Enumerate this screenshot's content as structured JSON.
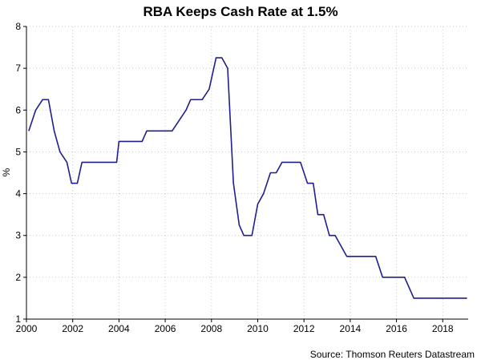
{
  "chart_data": {
    "type": "line",
    "title": "RBA Keeps Cash Rate at 1.5%",
    "ylabel": "%",
    "xlabel": "",
    "source": "Source: Thomson Reuters Datastream",
    "xlim": [
      2000,
      2019.1
    ],
    "ylim": [
      1,
      8
    ],
    "x_ticks": [
      2000,
      2002,
      2004,
      2006,
      2008,
      2010,
      2012,
      2014,
      2016,
      2018
    ],
    "y_ticks": [
      1,
      2,
      3,
      4,
      5,
      6,
      7,
      8
    ],
    "grid": true,
    "colors": {
      "line": "#1f1f8f"
    },
    "series": [
      {
        "points": [
          [
            2000.1,
            5.5
          ],
          [
            2000.4,
            6.0
          ],
          [
            2000.7,
            6.25
          ],
          [
            2000.95,
            6.25
          ],
          [
            2001.2,
            5.5
          ],
          [
            2001.45,
            5.0
          ],
          [
            2001.75,
            4.75
          ],
          [
            2001.95,
            4.25
          ],
          [
            2002.2,
            4.25
          ],
          [
            2002.4,
            4.75
          ],
          [
            2003.7,
            4.75
          ],
          [
            2003.9,
            4.75
          ],
          [
            2004.0,
            5.25
          ],
          [
            2005.0,
            5.25
          ],
          [
            2005.2,
            5.5
          ],
          [
            2006.3,
            5.5
          ],
          [
            2006.6,
            5.75
          ],
          [
            2006.9,
            6.0
          ],
          [
            2007.1,
            6.25
          ],
          [
            2007.6,
            6.25
          ],
          [
            2007.9,
            6.5
          ],
          [
            2008.0,
            6.75
          ],
          [
            2008.2,
            7.25
          ],
          [
            2008.45,
            7.25
          ],
          [
            2008.7,
            7.0
          ],
          [
            2008.95,
            4.25
          ],
          [
            2009.2,
            3.25
          ],
          [
            2009.4,
            3.0
          ],
          [
            2009.75,
            3.0
          ],
          [
            2010.0,
            3.75
          ],
          [
            2010.25,
            4.0
          ],
          [
            2010.55,
            4.5
          ],
          [
            2010.8,
            4.5
          ],
          [
            2011.05,
            4.75
          ],
          [
            2011.85,
            4.75
          ],
          [
            2012.15,
            4.25
          ],
          [
            2012.4,
            4.25
          ],
          [
            2012.6,
            3.5
          ],
          [
            2012.85,
            3.5
          ],
          [
            2013.1,
            3.0
          ],
          [
            2013.35,
            3.0
          ],
          [
            2013.85,
            2.5
          ],
          [
            2015.1,
            2.5
          ],
          [
            2015.4,
            2.0
          ],
          [
            2016.35,
            2.0
          ],
          [
            2016.75,
            1.5
          ],
          [
            2019.05,
            1.5
          ]
        ]
      }
    ]
  }
}
